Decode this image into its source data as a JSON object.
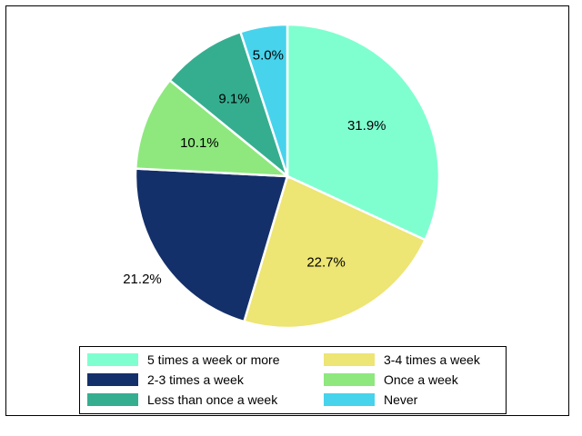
{
  "chart_data": {
    "type": "pie",
    "categories": [
      "5 times a week or more",
      "3-4 times a week",
      "2-3 times a week",
      "Once a week",
      "Less than once a week",
      "Never"
    ],
    "values": [
      31.9,
      22.7,
      21.2,
      10.1,
      9.1,
      5.0
    ],
    "labels": [
      "31.9%",
      "22.7%",
      "21.2%",
      "10.1%",
      "9.1%",
      "5.0%"
    ],
    "colors": [
      "#7fffd0",
      "#ede574",
      "#14306a",
      "#8ee87e",
      "#35ae90",
      "#47d3ec"
    ],
    "start": "12 o'clock",
    "direction": "clockwise",
    "legend_position": "bottom",
    "legend_order": [
      0,
      1,
      2,
      3,
      4,
      5
    ],
    "title": ""
  }
}
